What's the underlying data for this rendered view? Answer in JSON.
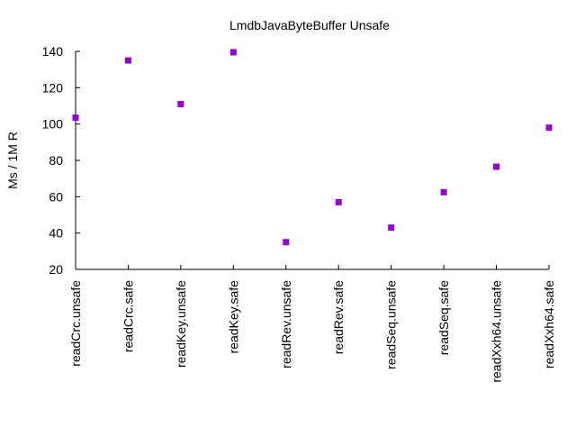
{
  "chart_data": {
    "type": "scatter",
    "title": "LmdbJavaByteBuffer Unsafe",
    "xlabel": "",
    "ylabel": "Ms / 1M R",
    "categories": [
      "readCrc.unsafe",
      "readCrc.safe",
      "readKey.unsafe",
      "readKey.safe",
      "readRev.unsafe",
      "readRev.safe",
      "readSeq.unsafe",
      "readSeq.safe",
      "readXxh64.unsafe",
      "readXxh64.safe"
    ],
    "series": [
      {
        "values": [
          103.5,
          135,
          111,
          139.5,
          35,
          57,
          43,
          62.5,
          76.5,
          98
        ],
        "color": "#9400d3",
        "marker": "square"
      }
    ],
    "ylim": [
      20,
      140
    ],
    "yticks": [
      "20",
      "40",
      "60",
      "80",
      "100",
      "120",
      "140"
    ],
    "grid": false,
    "legend": "none"
  }
}
